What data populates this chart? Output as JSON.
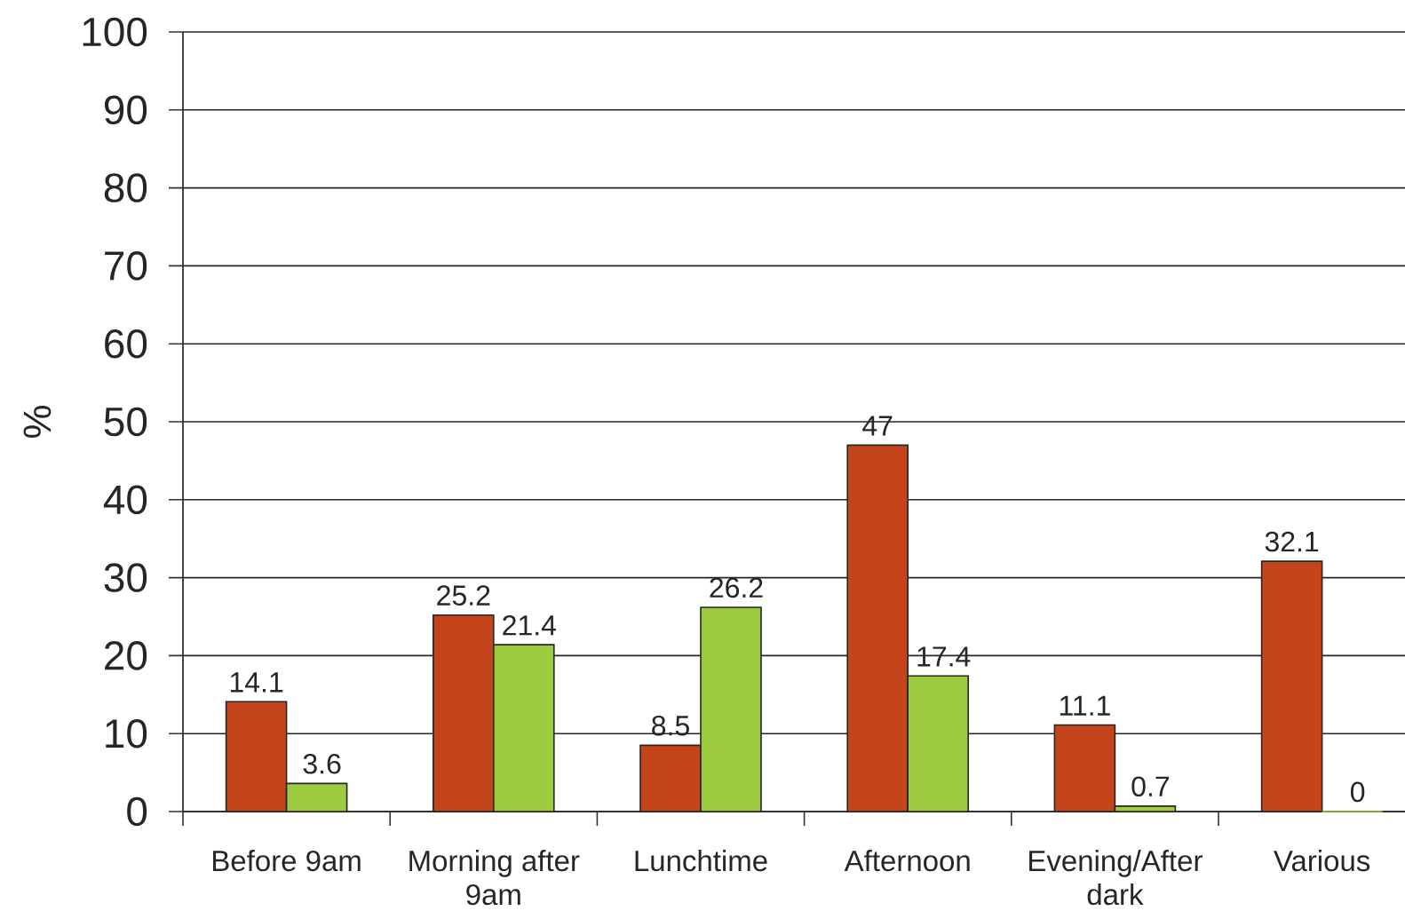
{
  "chart_data": {
    "type": "bar",
    "ylabel": "%",
    "categories": [
      "Before 9am",
      "Morning after 9am",
      "Lunchtime",
      "Afternoon",
      "Evening/After dark",
      "Various"
    ],
    "series": [
      {
        "color": "#c4441c",
        "values": [
          14.1,
          25.2,
          8.5,
          47,
          11.1,
          32.1
        ]
      },
      {
        "color": "#9dcb3f",
        "values": [
          3.6,
          21.4,
          26.2,
          17.4,
          0.7,
          0
        ]
      }
    ],
    "ylim": [
      0,
      100
    ],
    "yticks": [
      0,
      10,
      20,
      30,
      40,
      50,
      60,
      70,
      80,
      90,
      100
    ],
    "grid": "y",
    "data_labels": true
  }
}
